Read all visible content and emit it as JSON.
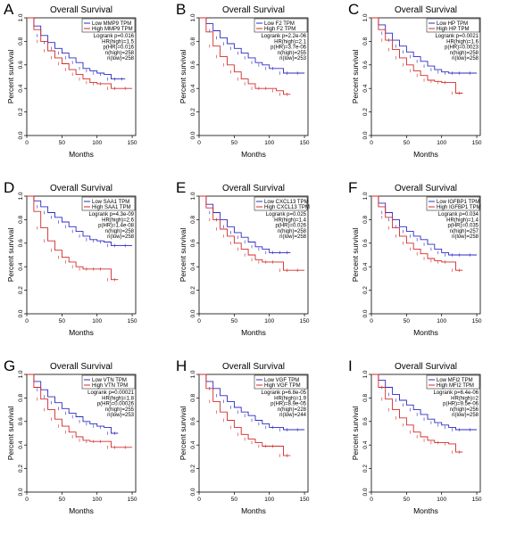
{
  "chart_data": [
    {
      "panel": "A",
      "type": "line",
      "title": "Overall Survival",
      "xlabel": "Months",
      "ylabel": "Percent survival",
      "xlim": [
        0,
        155
      ],
      "ylim": [
        0,
        1
      ],
      "xticks": [
        "0",
        "50",
        "100",
        "150"
      ],
      "yticks": [
        "0.0",
        "0.2",
        "0.4",
        "0.6",
        "0.8",
        "1.0"
      ],
      "legend": "top-right",
      "series": [
        {
          "name": "Low MMP9 TPM",
          "color": "#2b2bc4",
          "x": [
            0,
            10,
            20,
            30,
            40,
            50,
            60,
            70,
            80,
            90,
            100,
            110,
            120,
            130,
            140
          ],
          "y": [
            1,
            0.93,
            0.85,
            0.79,
            0.74,
            0.7,
            0.66,
            0.62,
            0.57,
            0.55,
            0.53,
            0.52,
            0.48,
            0.48,
            0.48
          ]
        },
        {
          "name": "High MMP9 TPM",
          "color": "#d42a2a",
          "x": [
            0,
            10,
            20,
            30,
            40,
            50,
            60,
            70,
            80,
            90,
            100,
            110,
            120,
            130,
            150
          ],
          "y": [
            1,
            0.9,
            0.8,
            0.72,
            0.66,
            0.61,
            0.56,
            0.52,
            0.48,
            0.45,
            0.44,
            0.44,
            0.4,
            0.4,
            0.4
          ]
        }
      ],
      "stats": [
        "Logrank p=0.016",
        "HR(high)=1.5",
        "p(HR)=0.016",
        "n(high)=258",
        "n(low)=258"
      ]
    },
    {
      "panel": "B",
      "type": "line",
      "title": "Overall Survival",
      "xlabel": "Months",
      "ylabel": "Percent survival",
      "xlim": [
        0,
        155
      ],
      "ylim": [
        0,
        1
      ],
      "xticks": [
        "0",
        "50",
        "100",
        "150"
      ],
      "yticks": [
        "0.0",
        "0.2",
        "0.4",
        "0.6",
        "0.8",
        "1.0"
      ],
      "legend": "top-right",
      "series": [
        {
          "name": "Low F2 TPM",
          "color": "#2b2bc4",
          "x": [
            0,
            10,
            20,
            30,
            40,
            50,
            60,
            70,
            80,
            90,
            100,
            110,
            120,
            130,
            150
          ],
          "y": [
            1,
            0.95,
            0.89,
            0.83,
            0.78,
            0.74,
            0.7,
            0.66,
            0.62,
            0.6,
            0.57,
            0.57,
            0.53,
            0.53,
            0.53
          ]
        },
        {
          "name": "High F2 TPM",
          "color": "#d42a2a",
          "x": [
            0,
            10,
            20,
            30,
            40,
            50,
            60,
            70,
            80,
            90,
            100,
            110,
            120,
            130
          ],
          "y": [
            1,
            0.88,
            0.76,
            0.67,
            0.6,
            0.54,
            0.48,
            0.44,
            0.4,
            0.4,
            0.4,
            0.38,
            0.35,
            0.35
          ]
        }
      ],
      "stats": [
        "Logrank p=2.2e-06",
        "HR(high)=2.1",
        "p(HR)=3.7e-06",
        "n(high)=255",
        "n(low)=253"
      ]
    },
    {
      "panel": "C",
      "type": "line",
      "title": "Overall Survival",
      "xlabel": "Months",
      "ylabel": "Percent survival",
      "xlim": [
        0,
        155
      ],
      "ylim": [
        0,
        1
      ],
      "xticks": [
        "0",
        "50",
        "100",
        "150"
      ],
      "yticks": [
        "0.0",
        "0.2",
        "0.4",
        "0.6",
        "0.8",
        "1.0"
      ],
      "legend": "top-right",
      "series": [
        {
          "name": "Low HP TPM",
          "color": "#2b2bc4",
          "x": [
            0,
            10,
            20,
            30,
            40,
            50,
            60,
            70,
            80,
            90,
            100,
            110,
            120,
            130,
            150
          ],
          "y": [
            1,
            0.94,
            0.87,
            0.81,
            0.76,
            0.71,
            0.67,
            0.63,
            0.59,
            0.56,
            0.54,
            0.53,
            0.53,
            0.53,
            0.53
          ]
        },
        {
          "name": "High HP TPM",
          "color": "#d42a2a",
          "x": [
            0,
            10,
            20,
            30,
            40,
            50,
            60,
            70,
            80,
            90,
            100,
            110,
            120,
            130
          ],
          "y": [
            1,
            0.9,
            0.81,
            0.73,
            0.66,
            0.6,
            0.55,
            0.51,
            0.47,
            0.46,
            0.45,
            0.45,
            0.36,
            0.36
          ]
        }
      ],
      "stats": [
        "Logrank p=0.0021",
        "HR(high)=1.6",
        "p(HR)=0.0023",
        "n(high)=258",
        "n(low)=258"
      ]
    },
    {
      "panel": "D",
      "type": "line",
      "title": "Overall Survival",
      "xlabel": "Months",
      "ylabel": "Percent survival",
      "xlim": [
        0,
        155
      ],
      "ylim": [
        0,
        1
      ],
      "xticks": [
        "0",
        "50",
        "100",
        "150"
      ],
      "yticks": [
        "0.0",
        "0.2",
        "0.4",
        "0.6",
        "0.8",
        "1.0"
      ],
      "legend": "top-right",
      "series": [
        {
          "name": "Low SAA1 TPM",
          "color": "#2b2bc4",
          "x": [
            0,
            10,
            20,
            30,
            40,
            50,
            60,
            70,
            80,
            90,
            100,
            110,
            120,
            130,
            150
          ],
          "y": [
            1,
            0.96,
            0.91,
            0.86,
            0.82,
            0.78,
            0.74,
            0.7,
            0.66,
            0.63,
            0.62,
            0.61,
            0.58,
            0.58,
            0.58
          ]
        },
        {
          "name": "High SAA1 TPM",
          "color": "#d42a2a",
          "x": [
            0,
            10,
            20,
            30,
            40,
            50,
            60,
            70,
            80,
            90,
            100,
            110,
            120,
            130
          ],
          "y": [
            1,
            0.87,
            0.73,
            0.62,
            0.54,
            0.48,
            0.44,
            0.4,
            0.38,
            0.38,
            0.38,
            0.38,
            0.29,
            0.29
          ]
        }
      ],
      "stats": [
        "Logrank p=4.3e-09",
        "HR(high)=2.6",
        "p(HR)=1.4e-08",
        "n(high)=258",
        "n(low)=258"
      ]
    },
    {
      "panel": "E",
      "type": "line",
      "title": "Overall Survival",
      "xlabel": "Months",
      "ylabel": "Percent survival",
      "xlim": [
        0,
        155
      ],
      "ylim": [
        0,
        1
      ],
      "xticks": [
        "0",
        "50",
        "100",
        "150"
      ],
      "yticks": [
        "0.0",
        "0.2",
        "0.4",
        "0.6",
        "0.8",
        "1.0"
      ],
      "legend": "top-right",
      "series": [
        {
          "name": "Low CXCL13 TPM",
          "color": "#2b2bc4",
          "x": [
            0,
            10,
            20,
            30,
            40,
            50,
            60,
            70,
            80,
            90,
            100,
            110,
            120,
            130
          ],
          "y": [
            1,
            0.93,
            0.86,
            0.8,
            0.74,
            0.69,
            0.65,
            0.61,
            0.57,
            0.55,
            0.52,
            0.52,
            0.52,
            0.52
          ]
        },
        {
          "name": "High CXCL13 TPM",
          "color": "#d42a2a",
          "x": [
            0,
            10,
            20,
            30,
            40,
            50,
            60,
            70,
            80,
            90,
            100,
            110,
            120,
            130,
            150
          ],
          "y": [
            1,
            0.9,
            0.8,
            0.72,
            0.66,
            0.6,
            0.55,
            0.5,
            0.46,
            0.44,
            0.44,
            0.44,
            0.37,
            0.37,
            0.37
          ]
        }
      ],
      "stats": [
        "Logrank p=0.025",
        "HR(high)=1.4",
        "p(HR)=0.026",
        "n(high)=258",
        "n(low)=258"
      ]
    },
    {
      "panel": "F",
      "type": "line",
      "title": "Overall Survival",
      "xlabel": "Months",
      "ylabel": "Percent survival",
      "xlim": [
        0,
        155
      ],
      "ylim": [
        0,
        1
      ],
      "xticks": [
        "0",
        "50",
        "100",
        "150"
      ],
      "yticks": [
        "0.0",
        "0.2",
        "0.4",
        "0.6",
        "0.8",
        "1.0"
      ],
      "legend": "top-right",
      "series": [
        {
          "name": "Low IGFBP1 TPM",
          "color": "#2b2bc4",
          "x": [
            0,
            10,
            20,
            30,
            40,
            50,
            60,
            70,
            80,
            90,
            100,
            110,
            120,
            130,
            150
          ],
          "y": [
            1,
            0.94,
            0.86,
            0.8,
            0.74,
            0.7,
            0.66,
            0.63,
            0.59,
            0.55,
            0.52,
            0.5,
            0.5,
            0.5,
            0.5
          ]
        },
        {
          "name": "High IGFBP1 TPM",
          "color": "#d42a2a",
          "x": [
            0,
            10,
            20,
            30,
            40,
            50,
            60,
            70,
            80,
            90,
            100,
            110,
            120,
            130
          ],
          "y": [
            1,
            0.91,
            0.82,
            0.73,
            0.66,
            0.6,
            0.55,
            0.51,
            0.47,
            0.45,
            0.44,
            0.44,
            0.37,
            0.37
          ]
        }
      ],
      "stats": [
        "Logrank p=0.034",
        "HR(high)=1.4",
        "p(HR)=0.035",
        "n(high)=257",
        "n(low)=258"
      ]
    },
    {
      "panel": "G",
      "type": "line",
      "title": "Overall Survival",
      "xlabel": "Months",
      "ylabel": "Percent survival",
      "xlim": [
        0,
        155
      ],
      "ylim": [
        0,
        1
      ],
      "xticks": [
        "0",
        "50",
        "100",
        "150"
      ],
      "yticks": [
        "0.0",
        "0.2",
        "0.4",
        "0.6",
        "0.8",
        "1.0"
      ],
      "legend": "top-right",
      "series": [
        {
          "name": "Low VTN TPM",
          "color": "#2b2bc4",
          "x": [
            0,
            10,
            20,
            30,
            40,
            50,
            60,
            70,
            80,
            90,
            100,
            110,
            120,
            130
          ],
          "y": [
            1,
            0.94,
            0.87,
            0.81,
            0.76,
            0.71,
            0.67,
            0.64,
            0.6,
            0.58,
            0.56,
            0.55,
            0.5,
            0.5
          ]
        },
        {
          "name": "High VTN TPM",
          "color": "#d42a2a",
          "x": [
            0,
            10,
            20,
            30,
            40,
            50,
            60,
            70,
            80,
            90,
            100,
            110,
            120,
            130,
            150
          ],
          "y": [
            1,
            0.89,
            0.79,
            0.7,
            0.62,
            0.56,
            0.51,
            0.47,
            0.44,
            0.43,
            0.43,
            0.43,
            0.38,
            0.38,
            0.38
          ]
        }
      ],
      "stats": [
        "Logrank p=0.00021",
        "HR(high)=1.8",
        "p(HR)=0.00026",
        "n(high)=255",
        "n(low)=253"
      ]
    },
    {
      "panel": "H",
      "type": "line",
      "title": "Overall Survival",
      "xlabel": "Months",
      "ylabel": "Percent survival",
      "xlim": [
        0,
        155
      ],
      "ylim": [
        0,
        1
      ],
      "xticks": [
        "0",
        "50",
        "100",
        "150"
      ],
      "yticks": [
        "0.0",
        "0.2",
        "0.4",
        "0.6",
        "0.8",
        "1.0"
      ],
      "legend": "top-right",
      "series": [
        {
          "name": "Low VGF TPM",
          "color": "#2b2bc4",
          "x": [
            0,
            10,
            20,
            30,
            40,
            50,
            60,
            70,
            80,
            90,
            100,
            110,
            120,
            130,
            150
          ],
          "y": [
            1,
            0.94,
            0.88,
            0.82,
            0.77,
            0.72,
            0.68,
            0.65,
            0.61,
            0.58,
            0.55,
            0.55,
            0.53,
            0.53,
            0.53
          ]
        },
        {
          "name": "High VGF TPM",
          "color": "#d42a2a",
          "x": [
            0,
            10,
            20,
            30,
            40,
            50,
            60,
            70,
            80,
            90,
            100,
            110,
            120,
            130
          ],
          "y": [
            1,
            0.88,
            0.77,
            0.68,
            0.61,
            0.55,
            0.49,
            0.45,
            0.42,
            0.39,
            0.39,
            0.39,
            0.31,
            0.31
          ]
        }
      ],
      "stats": [
        "Logrank p=6.8e-05",
        "HR(high)=1.9",
        "p(HR)=8.9e-05",
        "n(high)=228",
        "n(low)=244"
      ]
    },
    {
      "panel": "I",
      "type": "line",
      "title": "Overall Survival",
      "xlabel": "Months",
      "ylabel": "Percent survival",
      "xlim": [
        0,
        155
      ],
      "ylim": [
        0,
        1
      ],
      "xticks": [
        "0",
        "50",
        "100",
        "150"
      ],
      "yticks": [
        "0.0",
        "0.2",
        "0.4",
        "0.6",
        "0.8",
        "1.0"
      ],
      "legend": "top-right",
      "series": [
        {
          "name": "Low MFI2 TPM",
          "color": "#2b2bc4",
          "x": [
            0,
            10,
            20,
            30,
            40,
            50,
            60,
            70,
            80,
            90,
            100,
            110,
            120,
            130,
            150
          ],
          "y": [
            1,
            0.95,
            0.89,
            0.83,
            0.78,
            0.74,
            0.7,
            0.66,
            0.62,
            0.59,
            0.57,
            0.55,
            0.53,
            0.53,
            0.53
          ]
        },
        {
          "name": "High MFI2 TPM",
          "color": "#d42a2a",
          "x": [
            0,
            10,
            20,
            30,
            40,
            50,
            60,
            70,
            80,
            90,
            100,
            110,
            120,
            130
          ],
          "y": [
            1,
            0.89,
            0.79,
            0.7,
            0.63,
            0.57,
            0.51,
            0.47,
            0.44,
            0.42,
            0.42,
            0.41,
            0.34,
            0.34
          ]
        }
      ],
      "stats": [
        "Logrank p=6.4e-06",
        "HR(high)=2",
        "p(HR)=9.5e-06",
        "n(high)=256",
        "n(low)=258"
      ]
    }
  ]
}
